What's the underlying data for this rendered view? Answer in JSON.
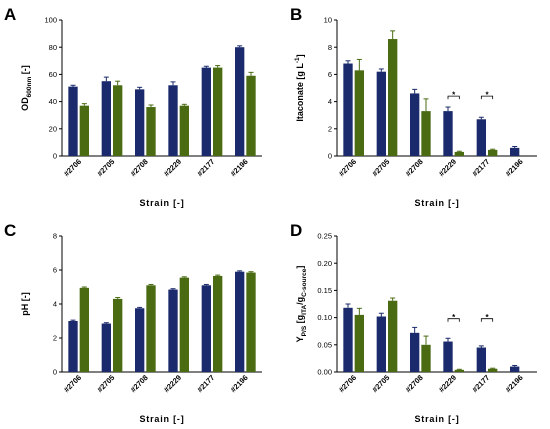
{
  "colors": {
    "series_a": "#1a2a6c",
    "series_b": "#4a6b12"
  },
  "chart_data": [
    {
      "panel": "A",
      "type": "bar",
      "categories": [
        "#2706",
        "#2705",
        "#2708",
        "#2229",
        "#2177",
        "#2196"
      ],
      "series": [
        {
          "values": [
            51,
            55,
            49,
            52,
            65,
            80
          ],
          "errors": [
            1,
            3,
            1.5,
            2.5,
            1,
            1
          ]
        },
        {
          "values": [
            37,
            52,
            36,
            37,
            65,
            59
          ],
          "errors": [
            1.5,
            3,
            1.5,
            1,
            1.5,
            2.5
          ]
        }
      ],
      "ylabel_main": "OD",
      "ylabel_sub": "600nm",
      "ylabel_unit": " [-]",
      "xlabel": "Strain [-]",
      "ylim": [
        0,
        100
      ],
      "yticks": [
        "0",
        "20",
        "40",
        "60",
        "80",
        "100"
      ],
      "significance": []
    },
    {
      "panel": "B",
      "type": "bar",
      "categories": [
        "#2706",
        "#2705",
        "#2708",
        "#2229",
        "#2177",
        "#2196"
      ],
      "series": [
        {
          "values": [
            6.8,
            6.2,
            4.6,
            3.3,
            2.7,
            0.6
          ],
          "errors": [
            0.2,
            0.2,
            0.3,
            0.3,
            0.15,
            0.1
          ]
        },
        {
          "values": [
            6.3,
            8.6,
            3.3,
            0.3,
            0.45,
            0
          ],
          "errors": [
            0.8,
            0.6,
            0.9,
            0.05,
            0.05,
            0
          ]
        }
      ],
      "ylabel_main": "Itaconate [g L",
      "ylabel_sup": "-1",
      "ylabel_unit": "]",
      "xlabel": "Strain [-]",
      "ylim": [
        0,
        10
      ],
      "yticks": [
        "0",
        "2",
        "4",
        "6",
        "8",
        "10"
      ],
      "significance": [
        {
          "category_index": 3,
          "y": 4.4,
          "label": "*"
        },
        {
          "category_index": 4,
          "y": 4.4,
          "label": "*"
        }
      ]
    },
    {
      "panel": "C",
      "type": "bar",
      "categories": [
        "#2706",
        "#2705",
        "#2708",
        "#2229",
        "#2177",
        "#2196"
      ],
      "series": [
        {
          "values": [
            3.0,
            2.85,
            3.75,
            4.85,
            5.1,
            5.9
          ],
          "errors": [
            0.05,
            0.05,
            0.05,
            0.05,
            0.05,
            0.05
          ]
        },
        {
          "values": [
            4.95,
            4.3,
            5.1,
            5.55,
            5.65,
            5.85
          ],
          "errors": [
            0.05,
            0.08,
            0.05,
            0.05,
            0.05,
            0.05
          ]
        }
      ],
      "ylabel_main": "pH [-]",
      "xlabel": "Strain [-]",
      "ylim": [
        0,
        8
      ],
      "yticks": [
        "0",
        "2",
        "4",
        "6",
        "8"
      ],
      "significance": []
    },
    {
      "panel": "D",
      "type": "bar",
      "categories": [
        "#2706",
        "#2705",
        "#2708",
        "#2229",
        "#2177",
        "#2196"
      ],
      "series": [
        {
          "values": [
            0.118,
            0.102,
            0.072,
            0.056,
            0.045,
            0.01
          ],
          "errors": [
            0.007,
            0.006,
            0.01,
            0.006,
            0.003,
            0.002
          ]
        },
        {
          "values": [
            0.105,
            0.131,
            0.05,
            0.004,
            0.006,
            0
          ],
          "errors": [
            0.012,
            0.005,
            0.016,
            0.001,
            0.001,
            0
          ]
        }
      ],
      "ylabel_main": "Y",
      "ylabel_sub": "P/S",
      "ylabel_rest": " [g",
      "ylabel_sub2": "ITA",
      "ylabel_rest2": "/g",
      "ylabel_sub3": "C-source",
      "ylabel_unit": "]",
      "xlabel": "Strain [-]",
      "ylim": [
        0,
        0.25
      ],
      "yticks": [
        "0.00",
        "0.05",
        "0.10",
        "0.15",
        "0.20",
        "0.25"
      ],
      "significance": [
        {
          "category_index": 3,
          "y": 0.098,
          "label": "*"
        },
        {
          "category_index": 4,
          "y": 0.098,
          "label": "*"
        }
      ]
    }
  ]
}
